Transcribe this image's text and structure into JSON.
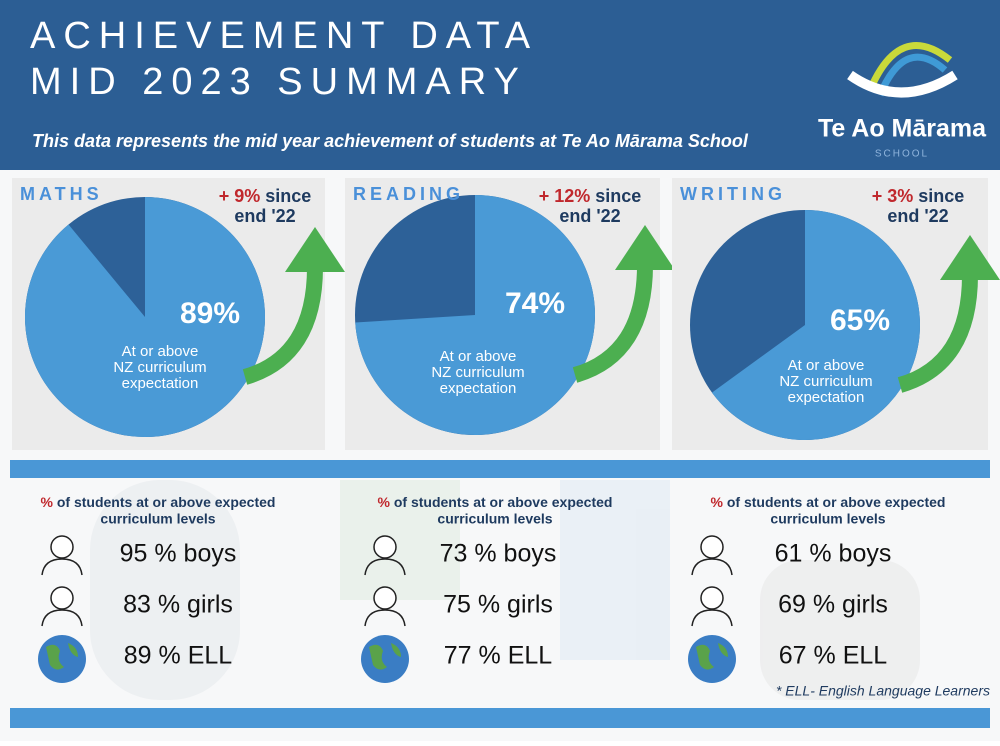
{
  "header": {
    "title_lines": [
      "ACHIEVEMENT DATA",
      "MID 2023 SUMMARY"
    ],
    "subtitle": "This data represents the mid year achievement  of  students  at Te Ao Mārama School",
    "logo_name": "Te Ao Mārama",
    "logo_sub": "SCHOOL"
  },
  "panels": [
    {
      "title": "MATHS",
      "value": 89,
      "value_label": "89%",
      "caption": [
        "At or above",
        "NZ curriculum",
        "expectation"
      ],
      "change": "+ 9%",
      "since": "since",
      "period": "end '22"
    },
    {
      "title": "READING",
      "value": 74,
      "value_label": "74%",
      "caption": [
        "At or above",
        "NZ curriculum",
        "expectation"
      ],
      "change": "+ 12%",
      "since": "since",
      "period": "end '22"
    },
    {
      "title": "WRITING",
      "value": 65,
      "value_label": "65%",
      "caption": [
        "At or above",
        "NZ curriculum",
        "expectation"
      ],
      "change": "+ 3%",
      "since": "since",
      "period": "end '22"
    }
  ],
  "stats": [
    {
      "heading_symbol": "%",
      "heading": [
        "of students at or above expected",
        "curriculum levels"
      ],
      "rows": [
        "95 % boys",
        "83 % girls",
        "89 % ELL"
      ]
    },
    {
      "heading_symbol": "%",
      "heading": [
        "of students at or above expected",
        "curriculum levels"
      ],
      "rows": [
        "73 % boys",
        "75 % girls",
        "77 % ELL"
      ]
    },
    {
      "heading_symbol": "%",
      "heading": [
        "of students at or above expected",
        "curriculum levels"
      ],
      "rows": [
        "61 % boys",
        "69 % girls",
        "67 % ELL"
      ]
    }
  ],
  "footnote": "* ELL- English Language Learners"
}
